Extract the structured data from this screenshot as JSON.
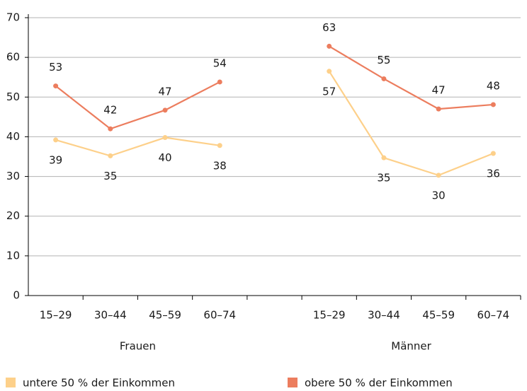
{
  "chart_data": {
    "type": "line",
    "categories": [
      "15–29",
      "30–44",
      "45–59",
      "60–74",
      null,
      "15–29",
      "30–44",
      "45–59",
      "60–74"
    ],
    "groups": [
      {
        "label": "Frauen",
        "from": 0,
        "to": 3
      },
      {
        "label": "Männer",
        "from": 5,
        "to": 8
      }
    ],
    "series": [
      {
        "name": "untere 50 % der Einkommen",
        "color": "#fdd08a",
        "values": [
          39.2,
          35.2,
          39.8,
          37.8,
          null,
          56.5,
          34.7,
          30.3,
          35.8
        ],
        "value_labels": [
          "39",
          "35",
          "40",
          "38",
          null,
          "57",
          "35",
          "30",
          "36"
        ]
      },
      {
        "name": "obere 50 % der Einkommen",
        "color": "#ec7d5e",
        "values": [
          52.8,
          42,
          46.7,
          53.8,
          null,
          62.8,
          54.6,
          47,
          48.1
        ],
        "value_labels": [
          "53",
          "42",
          "47",
          "54",
          null,
          "63",
          "55",
          "47",
          "48"
        ]
      }
    ],
    "ylim": [
      0,
      70
    ],
    "yticks": [
      0,
      10,
      20,
      30,
      40,
      50,
      60,
      70
    ],
    "grid": true
  }
}
